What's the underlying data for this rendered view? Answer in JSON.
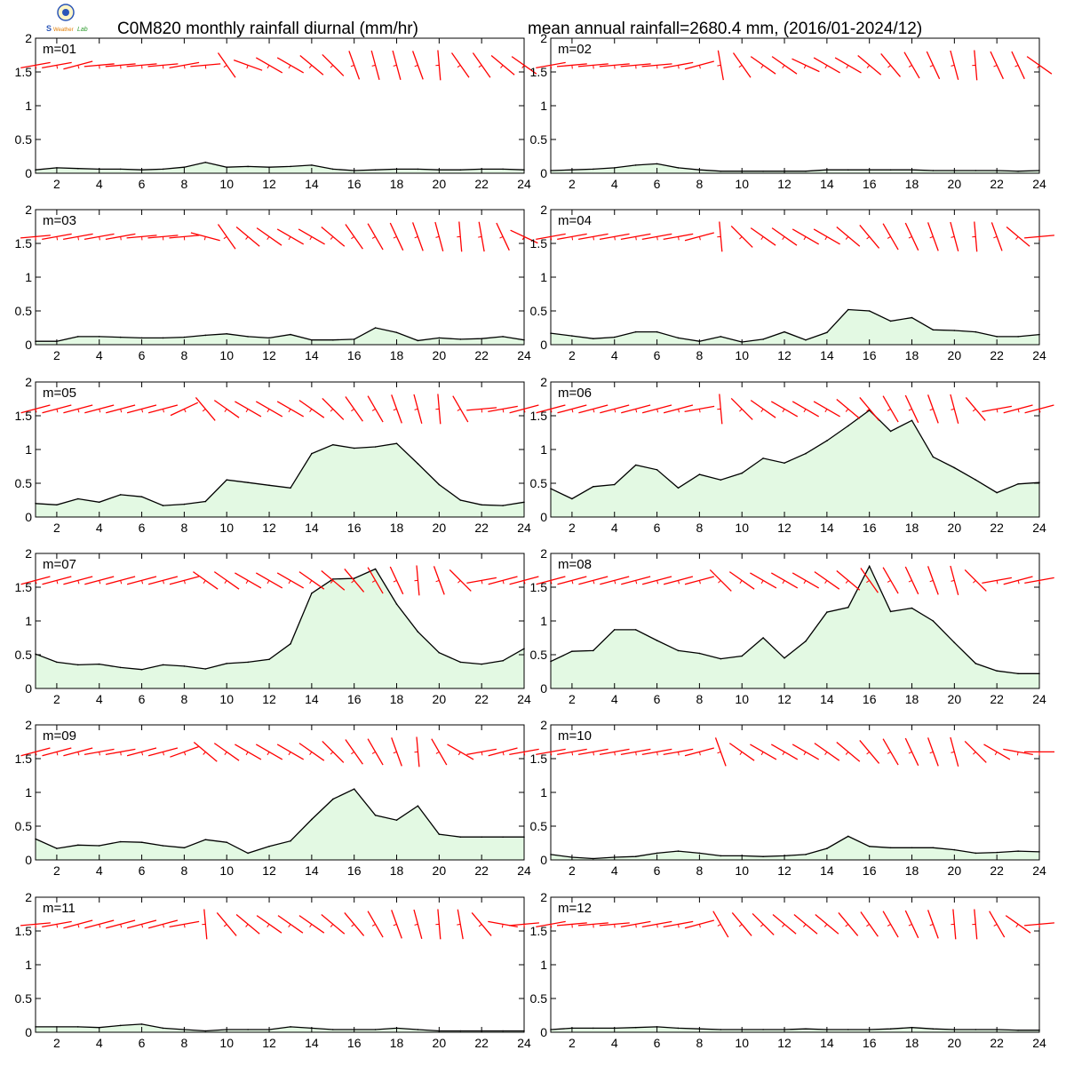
{
  "title_left": "C0M820 monthly rainfall diurnal (mm/hr)",
  "title_right": "mean annual rainfall=2680.4 mm, (2016/01-2024/12)",
  "colors": {
    "fill": "#e3f9e3",
    "line": "#000000",
    "wind": "#ff0000"
  },
  "chart_data": {
    "type": "area",
    "x": [
      1,
      2,
      3,
      4,
      5,
      6,
      7,
      8,
      9,
      10,
      11,
      12,
      13,
      14,
      15,
      16,
      17,
      18,
      19,
      20,
      21,
      22,
      23,
      24
    ],
    "xlim": [
      1,
      24
    ],
    "ylim": [
      0,
      2
    ],
    "x_ticks": [
      2,
      4,
      6,
      8,
      10,
      12,
      14,
      16,
      18,
      20,
      22,
      24
    ],
    "y_ticks": [
      0,
      0.5,
      1,
      1.5,
      2
    ],
    "x_tick_labels": [
      "2",
      "4",
      "6",
      "8",
      "10",
      "12",
      "14",
      "16",
      "18",
      "20",
      "22",
      "24"
    ],
    "y_tick_labels": [
      "0",
      "0.5",
      "1",
      "1.5",
      "2"
    ],
    "panels": [
      {
        "label": "m=01",
        "values": [
          0.05,
          0.08,
          0.07,
          0.06,
          0.06,
          0.05,
          0.06,
          0.09,
          0.16,
          0.09,
          0.1,
          0.09,
          0.1,
          0.12,
          0.06,
          0.04,
          0.05,
          0.06,
          0.06,
          0.05,
          0.05,
          0.06,
          0.06,
          0.05
        ],
        "wind_deg": [
          80,
          80,
          75,
          85,
          85,
          85,
          85,
          80,
          85,
          145,
          110,
          120,
          120,
          130,
          135,
          160,
          165,
          165,
          160,
          175,
          145,
          145,
          130,
          125
        ],
        "wind_speed": [
          1,
          1,
          1,
          1,
          1,
          1,
          1,
          1,
          1,
          1,
          1,
          1,
          1,
          1,
          1,
          1,
          1,
          1,
          1,
          1,
          1,
          1,
          1,
          1
        ]
      },
      {
        "label": "m=02",
        "values": [
          0.04,
          0.05,
          0.06,
          0.08,
          0.12,
          0.14,
          0.08,
          0.05,
          0.03,
          0.03,
          0.03,
          0.03,
          0.03,
          0.05,
          0.05,
          0.05,
          0.05,
          0.05,
          0.04,
          0.04,
          0.04,
          0.04,
          0.03,
          0.04
        ],
        "wind_deg": [
          80,
          85,
          85,
          85,
          85,
          85,
          80,
          75,
          170,
          145,
          125,
          125,
          115,
          120,
          120,
          130,
          140,
          150,
          155,
          165,
          175,
          155,
          155,
          125
        ],
        "wind_speed": [
          1,
          1,
          1,
          1,
          1,
          1,
          1,
          1,
          1,
          1,
          1,
          1,
          1,
          1,
          1,
          1,
          1,
          1,
          1,
          1,
          1,
          1,
          1,
          1
        ]
      },
      {
        "label": "m=03",
        "values": [
          0.05,
          0.05,
          0.12,
          0.12,
          0.11,
          0.1,
          0.1,
          0.11,
          0.14,
          0.16,
          0.12,
          0.1,
          0.15,
          0.07,
          0.07,
          0.08,
          0.25,
          0.18,
          0.06,
          0.1,
          0.08,
          0.09,
          0.12,
          0.07
        ],
        "wind_deg": [
          85,
          80,
          80,
          80,
          80,
          85,
          85,
          85,
          105,
          145,
          130,
          125,
          120,
          120,
          130,
          145,
          150,
          155,
          160,
          165,
          175,
          170,
          155,
          115
        ],
        "wind_speed": [
          1,
          1,
          1,
          1,
          1,
          1,
          1,
          1,
          1,
          1,
          1,
          1,
          1,
          1,
          1,
          1,
          1,
          1,
          1,
          1,
          1,
          1,
          1,
          1
        ]
      },
      {
        "label": "m=04",
        "values": [
          0.17,
          0.13,
          0.09,
          0.11,
          0.19,
          0.19,
          0.1,
          0.05,
          0.12,
          0.04,
          0.08,
          0.19,
          0.07,
          0.18,
          0.52,
          0.5,
          0.35,
          0.4,
          0.22,
          0.21,
          0.19,
          0.12,
          0.12,
          0.15
        ],
        "wind_deg": [
          80,
          80,
          80,
          80,
          80,
          80,
          80,
          75,
          175,
          135,
          125,
          125,
          120,
          120,
          130,
          140,
          150,
          155,
          160,
          165,
          175,
          160,
          130,
          85
        ],
        "wind_speed": [
          1,
          1,
          1,
          1,
          1,
          1,
          1,
          1,
          1,
          1,
          1,
          1,
          1,
          1,
          1,
          1,
          1,
          1,
          1,
          1,
          1,
          1,
          1,
          1
        ]
      },
      {
        "label": "m=05",
        "values": [
          0.2,
          0.18,
          0.27,
          0.22,
          0.33,
          0.3,
          0.17,
          0.19,
          0.23,
          0.55,
          0.51,
          0.47,
          0.43,
          0.94,
          1.07,
          1.02,
          1.04,
          1.09,
          0.79,
          0.48,
          0.25,
          0.18,
          0.17,
          0.22
        ],
        "wind_deg": [
          75,
          75,
          75,
          75,
          75,
          75,
          75,
          65,
          140,
          125,
          120,
          120,
          120,
          125,
          135,
          145,
          150,
          160,
          165,
          175,
          150,
          85,
          80,
          75
        ],
        "wind_speed": [
          1,
          1,
          1,
          1,
          1,
          1,
          1,
          1,
          1,
          1,
          1,
          1,
          1,
          1,
          1,
          1,
          1,
          1,
          1,
          1,
          1,
          1,
          1,
          1
        ]
      },
      {
        "label": "m=06",
        "values": [
          0.42,
          0.27,
          0.45,
          0.48,
          0.77,
          0.7,
          0.43,
          0.63,
          0.55,
          0.65,
          0.87,
          0.8,
          0.94,
          1.13,
          1.35,
          1.58,
          1.27,
          1.43,
          0.89,
          0.73,
          0.55,
          0.36,
          0.49,
          0.51
        ],
        "wind_deg": [
          75,
          75,
          75,
          75,
          75,
          75,
          75,
          80,
          175,
          135,
          125,
          120,
          120,
          120,
          130,
          140,
          150,
          155,
          160,
          165,
          140,
          80,
          75,
          75
        ],
        "wind_speed": [
          1,
          1,
          1,
          1,
          1,
          1,
          1,
          1,
          1,
          1,
          1,
          1,
          1,
          1,
          1,
          1,
          1,
          1,
          1,
          1,
          1,
          1,
          1,
          1
        ]
      },
      {
        "label": "m=07",
        "values": [
          0.51,
          0.39,
          0.35,
          0.36,
          0.31,
          0.28,
          0.35,
          0.33,
          0.29,
          0.37,
          0.39,
          0.43,
          0.66,
          1.41,
          1.62,
          1.63,
          1.77,
          1.25,
          0.84,
          0.53,
          0.39,
          0.36,
          0.41,
          0.59
        ],
        "wind_deg": [
          75,
          75,
          75,
          75,
          75,
          75,
          75,
          75,
          125,
          125,
          120,
          120,
          120,
          125,
          130,
          140,
          150,
          155,
          175,
          160,
          135,
          80,
          75,
          75
        ],
        "wind_speed": [
          1,
          1,
          1,
          1,
          1,
          1,
          1,
          1,
          1,
          1,
          1,
          1,
          1,
          1,
          1,
          1,
          1,
          1,
          1,
          1,
          1,
          1,
          1,
          1
        ]
      },
      {
        "label": "m=08",
        "values": [
          0.4,
          0.55,
          0.56,
          0.87,
          0.87,
          0.71,
          0.56,
          0.52,
          0.44,
          0.48,
          0.75,
          0.45,
          0.7,
          1.13,
          1.2,
          1.81,
          1.14,
          1.19,
          1.0,
          0.68,
          0.37,
          0.26,
          0.22,
          0.22
        ],
        "wind_deg": [
          75,
          75,
          75,
          75,
          75,
          75,
          75,
          75,
          135,
          125,
          120,
          120,
          120,
          125,
          130,
          145,
          150,
          155,
          160,
          165,
          135,
          80,
          75,
          80
        ],
        "wind_speed": [
          1,
          1,
          1,
          1,
          1,
          1,
          1,
          1,
          1,
          1,
          1,
          1,
          1,
          1,
          1,
          1,
          1,
          1,
          1,
          1,
          1,
          1,
          1,
          1
        ]
      },
      {
        "label": "m=09",
        "values": [
          0.31,
          0.17,
          0.22,
          0.21,
          0.27,
          0.26,
          0.21,
          0.18,
          0.3,
          0.26,
          0.1,
          0.2,
          0.28,
          0.6,
          0.9,
          1.05,
          0.66,
          0.59,
          0.8,
          0.38,
          0.34,
          0.34,
          0.34,
          0.34
        ],
        "wind_deg": [
          75,
          75,
          75,
          80,
          80,
          75,
          75,
          70,
          130,
          125,
          120,
          120,
          120,
          125,
          135,
          145,
          150,
          160,
          175,
          150,
          120,
          80,
          75,
          80
        ],
        "wind_speed": [
          1,
          1,
          1,
          1,
          1,
          1,
          1,
          1,
          1,
          1,
          1,
          1,
          1,
          1,
          1,
          1,
          1,
          1,
          1,
          1,
          1,
          1,
          1,
          1
        ]
      },
      {
        "label": "m=10",
        "values": [
          0.08,
          0.04,
          0.02,
          0.04,
          0.05,
          0.1,
          0.13,
          0.1,
          0.06,
          0.06,
          0.05,
          0.06,
          0.08,
          0.17,
          0.35,
          0.2,
          0.18,
          0.18,
          0.18,
          0.15,
          0.1,
          0.11,
          0.13,
          0.12
        ],
        "wind_deg": [
          80,
          80,
          80,
          80,
          80,
          80,
          80,
          75,
          160,
          125,
          120,
          120,
          120,
          125,
          130,
          140,
          150,
          155,
          160,
          165,
          135,
          120,
          100,
          90
        ],
        "wind_speed": [
          1,
          1,
          1,
          1,
          1,
          1,
          1,
          1,
          1,
          1,
          1,
          1,
          1,
          1,
          1,
          1,
          1,
          1,
          1,
          1,
          1,
          1,
          1,
          1
        ]
      },
      {
        "label": "m=11",
        "values": [
          0.08,
          0.08,
          0.08,
          0.07,
          0.1,
          0.12,
          0.06,
          0.04,
          0.02,
          0.04,
          0.04,
          0.04,
          0.08,
          0.06,
          0.04,
          0.04,
          0.04,
          0.06,
          0.04,
          0.02,
          0.02,
          0.02,
          0.02,
          0.02
        ],
        "wind_deg": [
          85,
          80,
          75,
          75,
          75,
          75,
          75,
          80,
          175,
          140,
          130,
          125,
          125,
          125,
          130,
          140,
          150,
          160,
          165,
          175,
          170,
          140,
          100,
          85
        ],
        "wind_speed": [
          1,
          1,
          1,
          1,
          1,
          1,
          1,
          1,
          1,
          1,
          1,
          1,
          1,
          1,
          1,
          1,
          1,
          1,
          1,
          1,
          1,
          1,
          1,
          1
        ]
      },
      {
        "label": "m=12",
        "values": [
          0.04,
          0.06,
          0.06,
          0.06,
          0.07,
          0.08,
          0.06,
          0.05,
          0.04,
          0.04,
          0.04,
          0.04,
          0.05,
          0.04,
          0.04,
          0.04,
          0.05,
          0.07,
          0.05,
          0.04,
          0.04,
          0.04,
          0.03,
          0.03
        ],
        "wind_deg": [
          80,
          85,
          85,
          85,
          80,
          80,
          80,
          75,
          150,
          140,
          135,
          130,
          130,
          130,
          140,
          145,
          150,
          155,
          160,
          175,
          175,
          150,
          125,
          85
        ],
        "wind_speed": [
          1,
          1,
          1,
          1,
          1,
          1,
          1,
          1,
          1,
          1,
          1,
          1,
          1,
          1,
          1,
          1,
          1,
          1,
          1,
          1,
          1,
          1,
          1,
          1
        ]
      }
    ],
    "grid": false,
    "legend": "none"
  }
}
